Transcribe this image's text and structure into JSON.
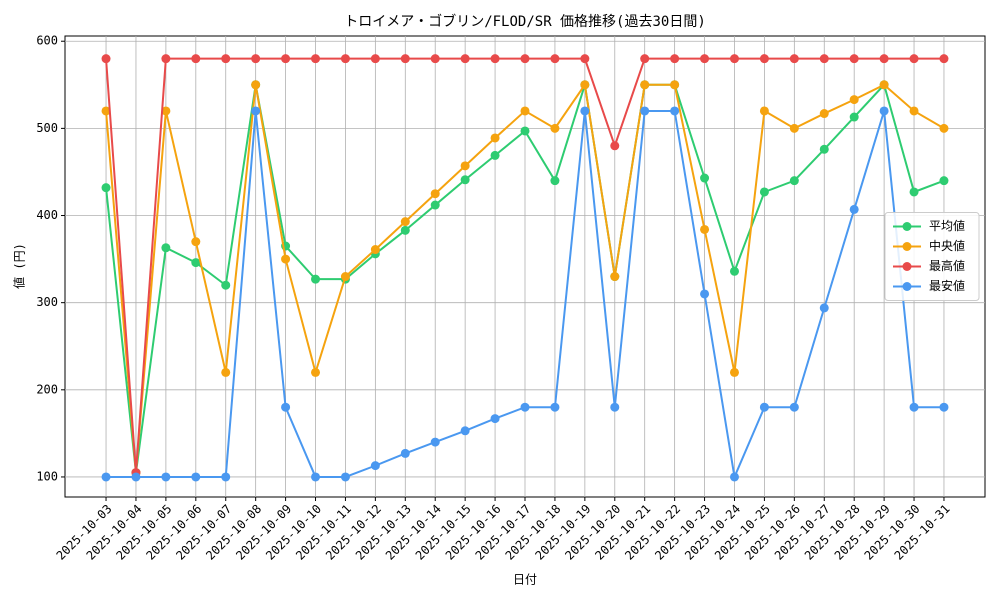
{
  "chart_data": {
    "type": "line",
    "title": "トロイメア・ゴブリン/FLOD/SR 価格推移(過去30日間)",
    "x_label": "日付",
    "y_label": "値 (円)",
    "categories": [
      "2025-10-03",
      "2025-10-04",
      "2025-10-05",
      "2025-10-06",
      "2025-10-07",
      "2025-10-08",
      "2025-10-09",
      "2025-10-10",
      "2025-10-11",
      "2025-10-12",
      "2025-10-13",
      "2025-10-14",
      "2025-10-15",
      "2025-10-16",
      "2025-10-17",
      "2025-10-18",
      "2025-10-19",
      "2025-10-20",
      "2025-10-21",
      "2025-10-22",
      "2025-10-23",
      "2025-10-24",
      "2025-10-25",
      "2025-10-26",
      "2025-10-27",
      "2025-10-28",
      "2025-10-29",
      "2025-10-30",
      "2025-10-31"
    ],
    "series": [
      {
        "name": "平均値",
        "color": "#2ecc71",
        "values": [
          432,
          105,
          363,
          346,
          320,
          550,
          365,
          327,
          327,
          356,
          383,
          412,
          441,
          469,
          497,
          440,
          550,
          330,
          550,
          550,
          443,
          336,
          427,
          440,
          476,
          513,
          550,
          427,
          440
        ]
      },
      {
        "name": "中央値",
        "color": "#f5a30f",
        "values": [
          520,
          105,
          520,
          370,
          220,
          550,
          350,
          220,
          330,
          361,
          393,
          425,
          457,
          489,
          520,
          500,
          550,
          330,
          550,
          550,
          384,
          220,
          520,
          500,
          517,
          533,
          550,
          520,
          500
        ]
      },
      {
        "name": "最高値",
        "color": "#e84a4a",
        "values": [
          580,
          105,
          580,
          580,
          580,
          580,
          580,
          580,
          580,
          580,
          580,
          580,
          580,
          580,
          580,
          580,
          580,
          480,
          580,
          580,
          580,
          580,
          580,
          580,
          580,
          580,
          580,
          580,
          580
        ]
      },
      {
        "name": "最安値",
        "color": "#4a98f0",
        "values": [
          100,
          100,
          100,
          100,
          100,
          520,
          180,
          100,
          100,
          113,
          127,
          140,
          153,
          167,
          180,
          180,
          520,
          180,
          520,
          520,
          310,
          100,
          180,
          180,
          294,
          407,
          520,
          180,
          180
        ]
      }
    ],
    "ylim": [
      77,
      606
    ],
    "yticks": [
      100,
      200,
      300,
      400,
      500,
      600
    ],
    "grid": true,
    "legend": "right"
  }
}
